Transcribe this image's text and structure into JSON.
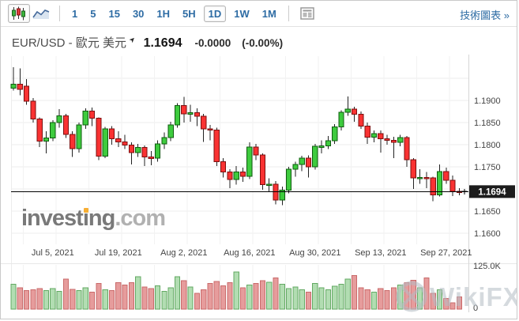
{
  "toolbar": {
    "chart_type_buttons": [
      {
        "name": "candlestick",
        "selected": true
      },
      {
        "name": "line",
        "selected": false
      }
    ],
    "timeframes": [
      "1",
      "5",
      "15",
      "30",
      "1H",
      "5H",
      "1D",
      "1W",
      "1M"
    ],
    "active_timeframe": "1D",
    "right_link": "技術圖表 »"
  },
  "title": {
    "symbol": "EUR/USD - 歐元 美元",
    "price": "1.1694",
    "change": "-0.0000",
    "change_pct": "(-0.00%)"
  },
  "watermarks": {
    "investing_main": "invest",
    "investing_i": "ı",
    "investing_end": "ng",
    "investing_tld": ".com",
    "wikifx": "WikiFX"
  },
  "chart_data": {
    "type": "candlestick",
    "pair": "EUR/USD",
    "interval": "1D",
    "last_price": 1.1694,
    "price_badge": "1.1694",
    "ylim": [
      1.158,
      1.2
    ],
    "grid": true,
    "y_ticks": [
      {
        "label": "1.1900",
        "value": 1.19
      },
      {
        "label": "1.1850",
        "value": 1.185
      },
      {
        "label": "1.1800",
        "value": 1.18
      },
      {
        "label": "1.1750",
        "value": 1.175
      },
      {
        "label": "1.1650",
        "value": 1.165
      },
      {
        "label": "1.1600",
        "value": 1.16
      }
    ],
    "grid_prices": [
      1.195,
      1.19,
      1.185,
      1.18,
      1.175,
      1.17,
      1.165,
      1.16
    ],
    "x_ticks": [
      {
        "label": "Jul 5, 2021",
        "index": 6
      },
      {
        "label": "Jul 19, 2021",
        "index": 16
      },
      {
        "label": "Aug 2, 2021",
        "index": 26
      },
      {
        "label": "Aug 16, 2021",
        "index": 36
      },
      {
        "label": "Aug 30, 2021",
        "index": 46
      },
      {
        "label": "Sep 13, 2021",
        "index": 56
      },
      {
        "label": "Sep 27, 2021",
        "index": 66
      }
    ],
    "volume_axis": {
      "top_label": "125.0K",
      "bottom_label": "0",
      "max_k": 125
    },
    "candles": [
      [
        1.1928,
        1.1975,
        1.1922,
        1.1937
      ],
      [
        1.1937,
        1.1972,
        1.1912,
        1.1925
      ],
      [
        1.1932,
        1.1948,
        1.189,
        1.1898
      ],
      [
        1.1898,
        1.1905,
        1.185,
        1.1858
      ],
      [
        1.1858,
        1.1862,
        1.1795,
        1.1808
      ],
      [
        1.1808,
        1.183,
        1.178,
        1.1815
      ],
      [
        1.1815,
        1.1855,
        1.1808,
        1.185
      ],
      [
        1.185,
        1.188,
        1.1838,
        1.1865
      ],
      [
        1.1865,
        1.187,
        1.1815,
        1.1823
      ],
      [
        1.1823,
        1.183,
        1.1772,
        1.1791
      ],
      [
        1.1791,
        1.185,
        1.1782,
        1.1845
      ],
      [
        1.1845,
        1.1882,
        1.1836,
        1.1876
      ],
      [
        1.1876,
        1.1884,
        1.1842,
        1.186
      ],
      [
        1.186,
        1.1862,
        1.1765,
        1.1774
      ],
      [
        1.1774,
        1.184,
        1.177,
        1.1836
      ],
      [
        1.1836,
        1.1842,
        1.18,
        1.1813
      ],
      [
        1.1813,
        1.183,
        1.1795,
        1.1806
      ],
      [
        1.1806,
        1.1822,
        1.179,
        1.1799
      ],
      [
        1.1799,
        1.1805,
        1.1755,
        1.1782
      ],
      [
        1.1782,
        1.1802,
        1.1772,
        1.1794
      ],
      [
        1.1794,
        1.1798,
        1.1752,
        1.1772
      ],
      [
        1.1772,
        1.1786,
        1.1754,
        1.177
      ],
      [
        1.177,
        1.181,
        1.1762,
        1.1802
      ],
      [
        1.1802,
        1.1828,
        1.179,
        1.1816
      ],
      [
        1.1816,
        1.1852,
        1.1808,
        1.1845
      ],
      [
        1.1845,
        1.1894,
        1.1838,
        1.1888
      ],
      [
        1.1888,
        1.1908,
        1.185,
        1.187
      ],
      [
        1.187,
        1.189,
        1.1852,
        1.1872
      ],
      [
        1.1872,
        1.1882,
        1.1842,
        1.1864
      ],
      [
        1.1864,
        1.187,
        1.1806,
        1.1836
      ],
      [
        1.1836,
        1.1845,
        1.181,
        1.1833
      ],
      [
        1.1833,
        1.1838,
        1.1752,
        1.1762
      ],
      [
        1.1762,
        1.177,
        1.1726,
        1.1738
      ],
      [
        1.1738,
        1.1745,
        1.1702,
        1.1721
      ],
      [
        1.1721,
        1.1752,
        1.171,
        1.1738
      ],
      [
        1.1738,
        1.1748,
        1.1716,
        1.1729
      ],
      [
        1.1729,
        1.1805,
        1.1722,
        1.1795
      ],
      [
        1.1795,
        1.1802,
        1.1765,
        1.1777
      ],
      [
        1.1777,
        1.178,
        1.1698,
        1.171
      ],
      [
        1.171,
        1.1724,
        1.1694,
        1.1711
      ],
      [
        1.1711,
        1.1718,
        1.1665,
        1.1675
      ],
      [
        1.1675,
        1.1705,
        1.1663,
        1.1697
      ],
      [
        1.1697,
        1.175,
        1.169,
        1.1745
      ],
      [
        1.1745,
        1.1762,
        1.1728,
        1.1755
      ],
      [
        1.1755,
        1.1775,
        1.174,
        1.177
      ],
      [
        1.177,
        1.1776,
        1.1726,
        1.175
      ],
      [
        1.175,
        1.1802,
        1.1744,
        1.1796
      ],
      [
        1.1796,
        1.181,
        1.178,
        1.1797
      ],
      [
        1.1797,
        1.182,
        1.179,
        1.1809
      ],
      [
        1.1809,
        1.1846,
        1.1802,
        1.184
      ],
      [
        1.184,
        1.1878,
        1.1832,
        1.1873
      ],
      [
        1.1873,
        1.1909,
        1.1865,
        1.188
      ],
      [
        1.188,
        1.1886,
        1.1852,
        1.1869
      ],
      [
        1.1869,
        1.1875,
        1.1836,
        1.1842
      ],
      [
        1.1842,
        1.185,
        1.1802,
        1.1817
      ],
      [
        1.1817,
        1.1832,
        1.1805,
        1.1825
      ],
      [
        1.1825,
        1.1832,
        1.1782,
        1.1813
      ],
      [
        1.1813,
        1.1822,
        1.18,
        1.181
      ],
      [
        1.181,
        1.1818,
        1.177,
        1.1805
      ],
      [
        1.1805,
        1.1822,
        1.1796,
        1.1816
      ],
      [
        1.1816,
        1.182,
        1.175,
        1.1766
      ],
      [
        1.1766,
        1.177,
        1.17,
        1.1725
      ],
      [
        1.1725,
        1.1745,
        1.1712,
        1.1726
      ],
      [
        1.1726,
        1.1738,
        1.1702,
        1.1725
      ],
      [
        1.1725,
        1.1728,
        1.1672,
        1.1687
      ],
      [
        1.1687,
        1.1755,
        1.1683,
        1.1739
      ],
      [
        1.1739,
        1.1748,
        1.1712,
        1.172
      ],
      [
        1.172,
        1.173,
        1.1684,
        1.1695
      ],
      [
        1.1695,
        1.1702,
        1.1686,
        1.1694
      ]
    ],
    "volumes_k": [
      70,
      60,
      52,
      55,
      58,
      52,
      58,
      50,
      85,
      56,
      53,
      60,
      48,
      72,
      55,
      52,
      75,
      68,
      75,
      92,
      63,
      58,
      66,
      50,
      60,
      92,
      80,
      62,
      45,
      55,
      72,
      78,
      66,
      75,
      105,
      60,
      68,
      72,
      80,
      76,
      88,
      70,
      58,
      62,
      55,
      48,
      72,
      60,
      55,
      65,
      70,
      85,
      95,
      60,
      55,
      48,
      58,
      52,
      60,
      68,
      75,
      82,
      60,
      88,
      45,
      55,
      30,
      18,
      35
    ],
    "colors": {
      "up_fill": "#3ecb3e",
      "up_border": "#0e5c0e",
      "down_fill": "#f93232",
      "down_border": "#7e0e0e",
      "wick": "#222222",
      "vol_up_fill": "#b2ddb2",
      "vol_up_border": "#63a963",
      "vol_down_fill": "#e69c9c",
      "vol_down_border": "#c96a6a",
      "price_line": "#000000",
      "badge_bg": "#1c1c1c",
      "badge_text": "#ffffff",
      "grid": "#ededed",
      "axis_line": "#d6d6d6",
      "axis_text": "#444444",
      "accent_blue": "#2e6ca4",
      "watermark_gray": "#b4bcc4"
    }
  }
}
